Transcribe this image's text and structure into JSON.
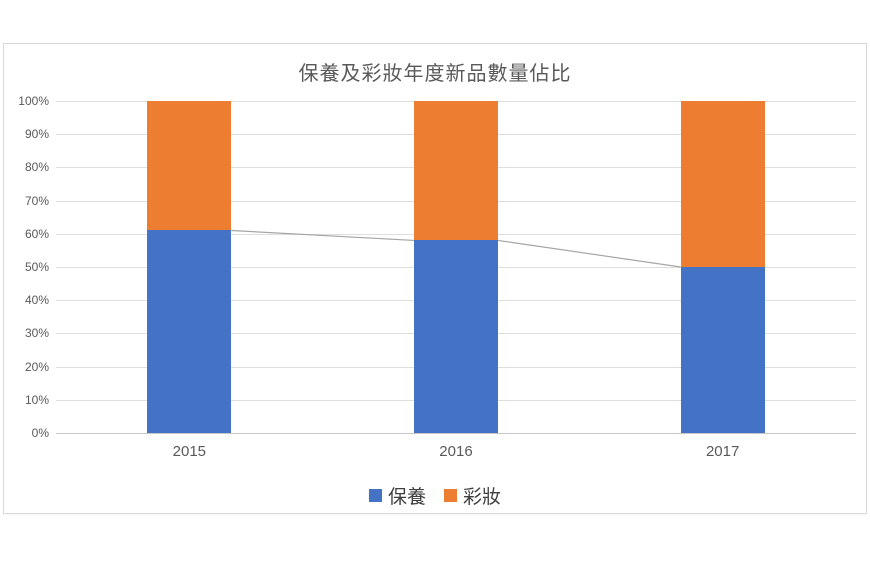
{
  "chart_data": {
    "type": "bar",
    "stacked": true,
    "units": "percent",
    "title": "保養及彩妝年度新品數量佔比",
    "categories": [
      "2015",
      "2016",
      "2017"
    ],
    "series": [
      {
        "name": "保養",
        "color": "#4472C4",
        "values": [
          61,
          58,
          50
        ]
      },
      {
        "name": "彩妝",
        "color": "#ED7D31",
        "values": [
          39,
          42,
          50
        ]
      }
    ],
    "y_ticks": [
      "0%",
      "10%",
      "20%",
      "30%",
      "40%",
      "50%",
      "60%",
      "70%",
      "80%",
      "90%",
      "100%"
    ],
    "ylim": [
      0,
      100
    ],
    "grid": "horizontal",
    "legend_position": "bottom",
    "connector_line_color": "#A6A6A6"
  }
}
